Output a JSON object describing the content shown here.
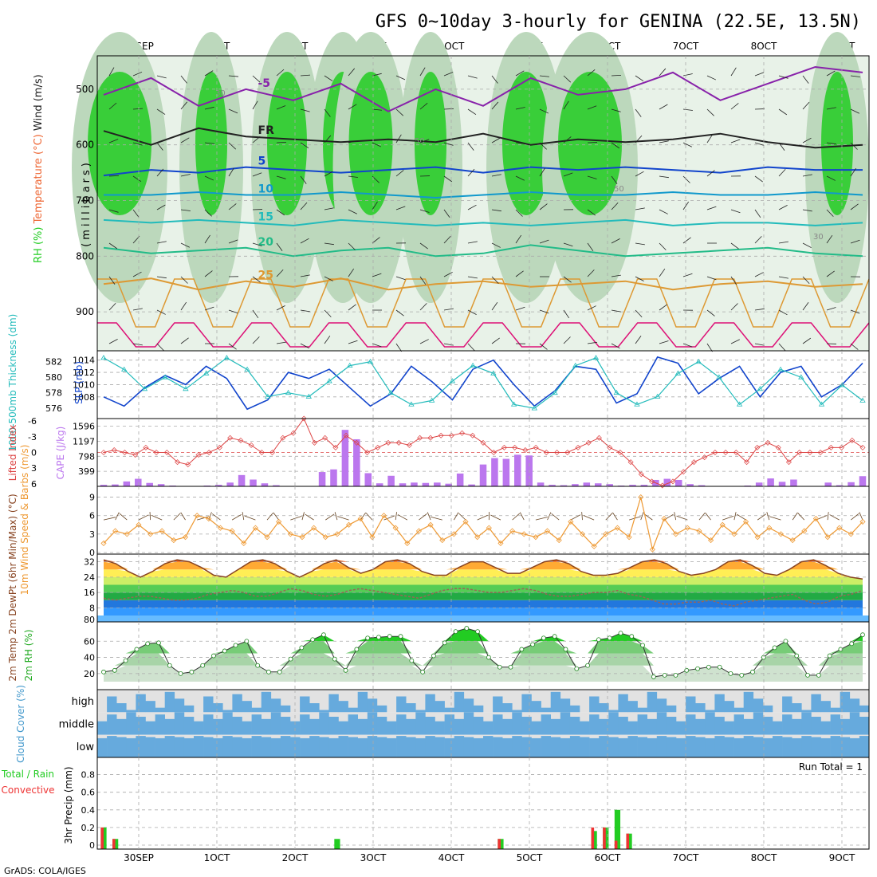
{
  "title": "GFS 0~10day 3-hourly for GENINA (22.5E, 13.5N)",
  "credit": "GrADS: COLA/IGES",
  "dates": [
    "30SEP",
    "1OCT",
    "2OCT",
    "3OCT",
    "4OCT",
    "5OCT",
    "6OCT",
    "7OCT",
    "8OCT",
    "9OCT"
  ],
  "colors": {
    "grid": "#aaaaaa",
    "frame": "#000000",
    "cloud": "#66aadd",
    "cloudBg": "#e2e2e2",
    "rhGreen": "#22cc22",
    "precipTotal": "#22cc22",
    "precipConv": "#ee3333",
    "cape": "#bb77ee",
    "li": "#dd4444",
    "slp": "#1144cc",
    "thick": "#22bbbb",
    "wind": "#ee9933",
    "barbs": "#664422",
    "dew": "#996655",
    "temp": "#884422"
  },
  "chart_data": [
    {
      "type": "contour",
      "panel": "upper-air",
      "ylabel_parts": [
        "RH (%)",
        "Temperature (°C)",
        "Wind (m/s)"
      ],
      "axis_label": "(millibars)",
      "ylim": [
        970,
        440
      ],
      "yticks": [
        500,
        600,
        700,
        800,
        900
      ],
      "temperature_contours": [
        {
          "label": "-5",
          "color": "#8822aa",
          "pressure": [
            510,
            480,
            530,
            500,
            520,
            490,
            540,
            500,
            530,
            480,
            510,
            500,
            470,
            520,
            490,
            460,
            470
          ]
        },
        {
          "label": "FR",
          "color": "#222222",
          "pressure": [
            575,
            600,
            570,
            585,
            590,
            595,
            590,
            595,
            580,
            600,
            590,
            595,
            590,
            580,
            595,
            605,
            600
          ]
        },
        {
          "label": "5",
          "color": "#1144cc",
          "pressure": [
            655,
            645,
            650,
            640,
            645,
            650,
            645,
            640,
            650,
            640,
            645,
            640,
            645,
            650,
            640,
            645,
            645
          ]
        },
        {
          "label": "10",
          "color": "#1199cc",
          "pressure": [
            690,
            690,
            685,
            690,
            690,
            685,
            690,
            695,
            690,
            685,
            690,
            690,
            685,
            690,
            690,
            685,
            690
          ]
        },
        {
          "label": "15",
          "color": "#22bbbb",
          "pressure": [
            735,
            740,
            735,
            740,
            745,
            735,
            740,
            745,
            740,
            745,
            740,
            735,
            745,
            740,
            740,
            745,
            740
          ]
        },
        {
          "label": "20",
          "color": "#22bb88",
          "pressure": [
            785,
            795,
            790,
            785,
            800,
            790,
            785,
            800,
            795,
            780,
            790,
            800,
            795,
            790,
            785,
            795,
            800
          ]
        },
        {
          "label": "25",
          "color": "#dd9933",
          "pressure": [
            850,
            840,
            860,
            845,
            855,
            840,
            860,
            850,
            845,
            855,
            850,
            845,
            860,
            850,
            845,
            855,
            850
          ]
        }
      ],
      "rh_labels": [
        "30",
        "50",
        "50",
        "30"
      ]
    },
    {
      "type": "line",
      "panel": "slp-thickness",
      "ylabel_left": "1000-500mb Thickness (dm)",
      "ylabel_right": "SLP (mb)",
      "yticks_left": [
        576,
        578,
        580,
        582
      ],
      "yticks_right": [
        1008,
        1010,
        1012,
        1014
      ],
      "series": [
        {
          "name": "SLP",
          "values": [
            1008.0,
            1006.5,
            1009.5,
            1011.5,
            1010.0,
            1013.0,
            1011.0,
            1006.0,
            1007.5,
            1012.0,
            1011.0,
            1012.5,
            1009.5,
            1006.5,
            1008.5,
            1013.0,
            1010.5,
            1007.5,
            1012.5,
            1014.0,
            1010.0,
            1006.5,
            1009.0,
            1013.0,
            1012.5,
            1007.0,
            1008.5,
            1014.5,
            1013.5,
            1008.5,
            1011.0,
            1013.0,
            1008.0,
            1012.0,
            1013.0,
            1008.0,
            1010.0,
            1013.5
          ]
        },
        {
          "name": "Thickness",
          "values": [
            582.5,
            581.0,
            578.5,
            580.0,
            578.5,
            580.5,
            582.5,
            581.0,
            577.5,
            578.0,
            577.5,
            579.5,
            581.5,
            582.0,
            578.0,
            576.5,
            577.0,
            579.5,
            581.5,
            580.5,
            576.5,
            576.0,
            578.0,
            581.5,
            582.5,
            578.0,
            576.5,
            577.5,
            580.5,
            582.0,
            580.0,
            576.5,
            578.5,
            581.0,
            580.0,
            576.5,
            579.0,
            577.0
          ]
        }
      ]
    },
    {
      "type": "bar-line",
      "panel": "cape-li",
      "ylabel_left": "Lifted Index",
      "ylabel_right": "CAPE (J/kg)",
      "yticks_left": [
        -6,
        -3,
        0,
        3,
        6
      ],
      "yticks_right": [
        399,
        798,
        1197,
        1596
      ],
      "series": [
        {
          "name": "Lifted Index",
          "values": [
            0,
            -0.5,
            0,
            0.5,
            -1,
            0,
            0,
            2,
            2.5,
            0.5,
            0,
            -1,
            -3,
            -2.5,
            -1.5,
            0,
            0,
            -3,
            -4,
            -7,
            -2,
            -3,
            -1,
            -3.5,
            -2,
            0,
            -1,
            -2,
            -2,
            -1.5,
            -3,
            -3,
            -3.5,
            -3.5,
            -4,
            -3.5,
            -2,
            0,
            -1,
            -1,
            -0.5,
            -1,
            0,
            0,
            0,
            -1,
            -2,
            -3,
            -1,
            0,
            2,
            4.5,
            6,
            7,
            6,
            4,
            2,
            1,
            0,
            0,
            0,
            2,
            -1,
            -2,
            -1,
            2,
            0,
            0,
            0,
            -1,
            -1,
            -2.5,
            -1
          ]
        },
        {
          "name": "CAPE",
          "values": [
            40,
            50,
            130,
            200,
            90,
            60,
            20,
            0,
            10,
            20,
            40,
            100,
            300,
            180,
            80,
            30,
            0,
            0,
            10,
            380,
            450,
            1500,
            1250,
            350,
            80,
            280,
            80,
            100,
            90,
            100,
            70,
            340,
            50,
            580,
            750,
            730,
            840,
            820,
            100,
            40,
            30,
            60,
            100,
            80,
            60,
            20,
            40,
            40,
            170,
            200,
            170,
            60,
            30,
            0,
            0,
            0,
            20,
            100,
            210,
            120,
            180,
            0,
            0,
            100,
            30,
            110,
            270
          ]
        }
      ]
    },
    {
      "type": "line",
      "panel": "wind",
      "ylabel": "10m Wind Speed & Barbs (m/s)",
      "yticks": [
        0,
        3,
        6,
        9
      ],
      "series": [
        {
          "name": "Speed",
          "values": [
            1.5,
            3.5,
            3.0,
            4.5,
            3.0,
            3.5,
            2.0,
            2.5,
            6.0,
            5.5,
            4.0,
            3.5,
            1.5,
            4.0,
            2.5,
            5.0,
            3.0,
            2.5,
            4.0,
            2.5,
            3.0,
            4.5,
            5.5,
            2.5,
            6.0,
            4.0,
            1.5,
            3.5,
            4.5,
            2.0,
            3.0,
            5.0,
            2.5,
            4.0,
            1.5,
            3.5,
            3.0,
            2.5,
            3.5,
            2.0,
            5.0,
            3.0,
            1.0,
            3.0,
            4.0,
            2.5,
            9.0,
            0.5,
            5.5,
            3.0,
            4.0,
            3.5,
            2.0,
            4.5,
            3.0,
            5.0,
            2.5,
            4.0,
            3.0,
            2.0,
            3.5,
            5.5,
            2.5,
            4.0,
            3.0,
            5.0
          ]
        }
      ]
    },
    {
      "type": "area-line",
      "panel": "temperature",
      "ylabel": "2m Temp 2m DewPt (6hr Min/Max) (°C)",
      "yticks": [
        8,
        16,
        24,
        32
      ],
      "ytick_extra": "80",
      "series": [
        {
          "name": "2m Temp",
          "values": [
            33,
            31,
            27,
            24,
            27,
            31,
            33,
            32,
            29,
            25,
            24,
            28,
            32,
            33,
            31,
            27,
            24,
            27,
            31,
            33,
            29,
            26,
            28,
            32,
            33,
            31,
            27,
            25,
            25,
            29,
            32,
            32,
            29,
            26,
            26,
            29,
            32,
            33,
            31,
            27,
            25,
            25,
            26,
            29,
            32,
            33,
            31,
            27,
            25,
            26,
            28,
            32,
            33,
            30,
            26,
            25,
            28,
            32,
            33,
            30,
            26,
            24,
            23
          ]
        },
        {
          "name": "2m DewPt",
          "values": [
            13,
            12,
            13,
            14,
            14,
            13,
            12,
            12,
            13,
            15,
            16,
            17,
            16,
            14,
            14,
            16,
            18,
            17,
            15,
            14,
            15,
            17,
            18,
            17,
            16,
            15,
            14,
            13,
            15,
            17,
            18,
            18,
            17,
            16,
            16,
            17,
            18,
            17,
            15,
            14,
            14,
            15,
            16,
            16,
            17,
            15,
            14,
            12,
            10,
            10,
            11,
            11,
            12,
            10,
            9,
            11,
            12,
            13,
            14,
            15,
            12,
            10,
            11,
            14,
            15,
            17
          ]
        }
      ]
    },
    {
      "type": "area",
      "panel": "rh2m",
      "ylabel": "2m RH (%)",
      "yticks": [
        20,
        40,
        60
      ],
      "series": [
        {
          "name": "2m RH",
          "values": [
            22,
            24,
            36,
            50,
            57,
            58,
            30,
            20,
            22,
            30,
            42,
            48,
            55,
            60,
            30,
            22,
            22,
            38,
            52,
            62,
            68,
            38,
            24,
            50,
            64,
            65,
            66,
            66,
            36,
            22,
            42,
            58,
            72,
            76,
            72,
            40,
            28,
            28,
            50,
            56,
            64,
            66,
            50,
            26,
            30,
            62,
            64,
            70,
            66,
            55,
            16,
            18,
            18,
            24,
            26,
            28,
            28,
            20,
            18,
            22,
            40,
            52,
            60,
            42,
            18,
            18,
            42,
            50,
            57,
            68
          ]
        }
      ]
    },
    {
      "type": "heatmap",
      "panel": "cloud",
      "ylabel": "Cloud Cover (%)",
      "rows": [
        "high",
        "middle",
        "low"
      ],
      "note": "cloud cover per 3-hour step (%)"
    },
    {
      "type": "bar",
      "panel": "precip",
      "ylabel_parts": [
        "3hr Precip (mm)",
        "Total / Rain",
        "Convective"
      ],
      "yticks": [
        "0",
        "0.2",
        "0.4",
        "0.6",
        "0.8"
      ],
      "annotation": "Run Total = 1",
      "series": [
        {
          "name": "Total",
          "values": [
            0.2,
            0.07,
            0,
            0,
            0,
            0,
            0,
            0,
            0,
            0,
            0,
            0,
            0,
            0,
            0,
            0,
            0,
            0,
            0,
            0,
            0.07,
            0,
            0,
            0,
            0,
            0,
            0,
            0,
            0,
            0,
            0,
            0,
            0,
            0,
            0.07,
            0,
            0,
            0,
            0,
            0,
            0,
            0,
            0.16,
            0.2,
            0.4,
            0.13,
            0,
            0,
            0,
            0,
            0,
            0,
            0,
            0,
            0,
            0,
            0,
            0,
            0,
            0,
            0,
            0,
            0,
            0,
            0,
            0
          ]
        },
        {
          "name": "Convective",
          "values": [
            0.2,
            0.07,
            0,
            0,
            0,
            0,
            0,
            0,
            0,
            0,
            0,
            0,
            0,
            0,
            0,
            0,
            0,
            0,
            0,
            0,
            0,
            0,
            0,
            0,
            0,
            0,
            0,
            0,
            0,
            0,
            0,
            0,
            0,
            0,
            0.07,
            0,
            0,
            0,
            0,
            0,
            0,
            0,
            0.2,
            0.2,
            0.05,
            0.13,
            0,
            0,
            0,
            0,
            0,
            0,
            0,
            0,
            0,
            0,
            0,
            0,
            0,
            0,
            0,
            0,
            0,
            0,
            0,
            0
          ]
        }
      ]
    }
  ]
}
